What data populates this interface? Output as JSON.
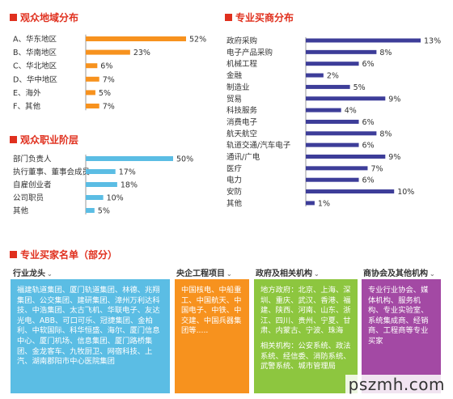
{
  "region_panel": {
    "title": "观众地域分布"
  },
  "occupation_panel": {
    "title": "观众职业阶层"
  },
  "industry_panel": {
    "title": "专业买商分布"
  },
  "buyers": {
    "title": "专业买家名单（部分）",
    "columns": [
      {
        "heading": "行业龙头",
        "color": "#5bbde4",
        "paragraphs": [
          "福建轨道集团、厦门轨道集团、林德、兆翔集团、公交集团、建研集团、漳州万利达科技、中浩集团、太古飞机、华联电子、友达光电、ABB、可口可乐、冠捷集团、金柏利、中软国际、科华恒盛、海尔、厦门信息中心、厦门机场、信息集团、厦门路桥集团、金龙客车、九牧厨卫、网宿科技、上汽、湖南郡阳市中心医院集团"
        ]
      },
      {
        "heading": "央企工程项目",
        "color": "#f7921e",
        "paragraphs": [
          "中国核电、中船重工、中国航天、中国电子、中铁、中交建、中国兵器集团等....."
        ]
      },
      {
        "heading": "政府及相关机构",
        "color": "#8dc63f",
        "paragraphs": [
          "地方政府：北京、上海、深圳、重庆、武汉、香港、福建、陕西、河南、山东、浙江、四川、贵州、宁夏、甘肃、内蒙古、宁波、珠海",
          "相关机构：公安系统、政法系统、经信委、消防系统、武警系统、城市管理局"
        ]
      },
      {
        "heading": "商协会及其他机构",
        "color": "#a349a4",
        "paragraphs": [
          "专业行业协会、媒体机构、服务机构、专业实验室、系统集成商、经销商、工程商等专业买家"
        ]
      }
    ]
  },
  "watermark": "pszmh.com",
  "chart_data": [
    {
      "type": "bar",
      "orientation": "horizontal",
      "title": "观众地域分布",
      "categories": [
        "A、华东地区",
        "B、华南地区",
        "C、华北地区",
        "D、华中地区",
        "E、海外",
        "F、其他"
      ],
      "values": [
        52,
        23,
        6,
        7,
        5,
        7
      ],
      "value_labels": [
        "52%",
        "23%",
        "6%",
        "7%",
        "5%",
        "7%"
      ],
      "color": "#f7921e",
      "xlim": [
        0,
        52
      ]
    },
    {
      "type": "bar",
      "orientation": "horizontal",
      "title": "观众职业阶层",
      "categories": [
        "部门负责人",
        "执行董事、董事会成员",
        "自雇创业者",
        "公司职员",
        "其他"
      ],
      "values": [
        50,
        17,
        18,
        10,
        5
      ],
      "value_labels": [
        "50%",
        "17%",
        "18%",
        "10%",
        "5%"
      ],
      "color": "#5bbde4",
      "xlim": [
        0,
        50
      ]
    },
    {
      "type": "bar",
      "orientation": "horizontal",
      "title": "专业买商分布",
      "categories": [
        "政府采购",
        "电子产品采购",
        "机械工程",
        "金融",
        "制造业",
        "贸易",
        "科技服务",
        "消费电子",
        "航天航空",
        "轨道交通/汽车电子",
        "通讯/广电",
        "医疗",
        "电力",
        "安防",
        "其他"
      ],
      "values": [
        13,
        8,
        6,
        2,
        5,
        9,
        4,
        6,
        8,
        6,
        9,
        7,
        6,
        10,
        1
      ],
      "value_labels": [
        "13%",
        "8%",
        "6%",
        "2%",
        "5%",
        "9%",
        "4%",
        "6%",
        "8%",
        "6%",
        "9%",
        "7%",
        "6%",
        "10%",
        "1%"
      ],
      "color": "#3d3d99",
      "xlim": [
        0,
        13
      ]
    }
  ]
}
